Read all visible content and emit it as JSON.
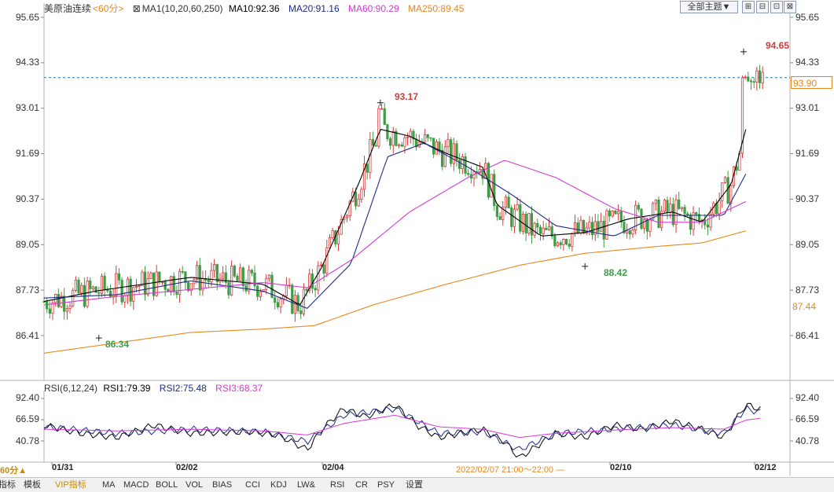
{
  "header": {
    "instrument": "美原油连续",
    "period": "<60分>",
    "ma_label": "MA1(10,20,60,250)",
    "ma10": "MA10:92.36",
    "ma20": "MA20:91.16",
    "ma60": "MA60:90.29",
    "ma250": "MA250:89.45",
    "theme_button": "全部主题▼",
    "colors": {
      "ma10": "#000000",
      "ma20": "#1d2a8a",
      "ma60": "#d23ad2",
      "ma250": "#e8871e",
      "up": "#d43b3b",
      "down": "#3f9c45"
    }
  },
  "price_axis": {
    "labels": [
      "95.65",
      "94.33",
      "93.01",
      "91.69",
      "90.37",
      "89.05",
      "87.73",
      "86.41"
    ],
    "current_price": "93.90",
    "ma250_price": "87.44"
  },
  "annotations": {
    "high1": "93.17",
    "high2": "94.65",
    "low1": "86.34",
    "low2": "88.42"
  },
  "rsi": {
    "title": "RSI(6,12,24)",
    "rsi1": "RSI1:79.39",
    "rsi2": "RSI2:75.48",
    "rsi3": "RSI3:68.37",
    "axis": [
      "92.40",
      "66.59",
      "40.78"
    ]
  },
  "x_axis": {
    "period_button": "60分▲",
    "labels": [
      "01/31",
      "02/02",
      "02/04",
      "02/10",
      "02/12"
    ],
    "crosshair_time": "2022/02/07 21:00～22:00 —"
  },
  "bottom_tabs": [
    "指标",
    "模板",
    "VIP指标",
    "MA",
    "MACD",
    "BOLL",
    "VOL",
    "BIAS",
    "CCI",
    "KDJ",
    "LW&",
    "RSI",
    "CR",
    "PSY",
    "设置"
  ],
  "chart_data": {
    "type": "line",
    "title": "美原油连续 60分",
    "xlabel": "",
    "ylabel": "",
    "ylim": [
      85.8,
      95.8
    ],
    "x": [
      "01/31",
      "02/02",
      "02/04",
      "02/10",
      "02/12"
    ],
    "series": [
      {
        "name": "MA10",
        "keypoints": [
          [
            0,
            87.4
          ],
          [
            0.07,
            87.7
          ],
          [
            0.2,
            88.1
          ],
          [
            0.3,
            87.9
          ],
          [
            0.35,
            87.3
          ],
          [
            0.38,
            88.4
          ],
          [
            0.43,
            90.8
          ],
          [
            0.46,
            92.4
          ],
          [
            0.5,
            92.2
          ],
          [
            0.55,
            91.7
          ],
          [
            0.6,
            91.3
          ],
          [
            0.62,
            90.2
          ],
          [
            0.68,
            89.3
          ],
          [
            0.74,
            89.4
          ],
          [
            0.8,
            89.8
          ],
          [
            0.86,
            90.0
          ],
          [
            0.9,
            89.7
          ],
          [
            0.94,
            90.8
          ],
          [
            0.96,
            92.4
          ]
        ]
      },
      {
        "name": "MA20",
        "keypoints": [
          [
            0,
            87.5
          ],
          [
            0.1,
            87.6
          ],
          [
            0.2,
            88.0
          ],
          [
            0.3,
            87.7
          ],
          [
            0.36,
            87.2
          ],
          [
            0.42,
            88.5
          ],
          [
            0.47,
            91.6
          ],
          [
            0.52,
            92.0
          ],
          [
            0.58,
            91.3
          ],
          [
            0.64,
            90.5
          ],
          [
            0.7,
            89.6
          ],
          [
            0.78,
            89.3
          ],
          [
            0.84,
            89.9
          ],
          [
            0.9,
            89.9
          ],
          [
            0.93,
            89.9
          ],
          [
            0.96,
            91.1
          ]
        ]
      },
      {
        "name": "MA60",
        "keypoints": [
          [
            0,
            87.3
          ],
          [
            0.1,
            87.55
          ],
          [
            0.2,
            87.75
          ],
          [
            0.3,
            87.95
          ],
          [
            0.36,
            87.8
          ],
          [
            0.42,
            88.6
          ],
          [
            0.5,
            90.0
          ],
          [
            0.58,
            91.0
          ],
          [
            0.63,
            91.5
          ],
          [
            0.7,
            91.0
          ],
          [
            0.78,
            90.1
          ],
          [
            0.84,
            89.7
          ],
          [
            0.9,
            89.7
          ],
          [
            0.96,
            90.3
          ]
        ]
      },
      {
        "name": "MA250",
        "keypoints": [
          [
            0,
            85.9
          ],
          [
            0.1,
            86.2
          ],
          [
            0.2,
            86.5
          ],
          [
            0.3,
            86.6
          ],
          [
            0.37,
            86.7
          ],
          [
            0.45,
            87.3
          ],
          [
            0.55,
            87.9
          ],
          [
            0.65,
            88.45
          ],
          [
            0.74,
            88.8
          ],
          [
            0.84,
            89.0
          ],
          [
            0.9,
            89.1
          ],
          [
            0.96,
            89.45
          ]
        ]
      },
      {
        "name": "RSI1",
        "keypoints": [
          [
            0,
            60
          ],
          [
            0.05,
            50
          ],
          [
            0.1,
            45
          ],
          [
            0.15,
            60
          ],
          [
            0.2,
            50
          ],
          [
            0.28,
            52
          ],
          [
            0.32,
            48
          ],
          [
            0.36,
            30
          ],
          [
            0.38,
            55
          ],
          [
            0.41,
            80
          ],
          [
            0.44,
            70
          ],
          [
            0.48,
            85
          ],
          [
            0.51,
            60
          ],
          [
            0.54,
            45
          ],
          [
            0.6,
            55
          ],
          [
            0.63,
            40
          ],
          [
            0.65,
            20
          ],
          [
            0.7,
            50
          ],
          [
            0.74,
            45
          ],
          [
            0.78,
            60
          ],
          [
            0.82,
            55
          ],
          [
            0.86,
            65
          ],
          [
            0.9,
            55
          ],
          [
            0.93,
            45
          ],
          [
            0.96,
            85
          ],
          [
            0.98,
            79.39
          ]
        ]
      },
      {
        "name": "RSI2",
        "keypoints": [
          [
            0,
            58
          ],
          [
            0.1,
            50
          ],
          [
            0.2,
            55
          ],
          [
            0.3,
            52
          ],
          [
            0.36,
            40
          ],
          [
            0.41,
            72
          ],
          [
            0.48,
            80
          ],
          [
            0.54,
            50
          ],
          [
            0.6,
            52
          ],
          [
            0.65,
            30
          ],
          [
            0.7,
            50
          ],
          [
            0.78,
            55
          ],
          [
            0.86,
            60
          ],
          [
            0.93,
            50
          ],
          [
            0.96,
            80
          ],
          [
            0.98,
            75.48
          ]
        ]
      },
      {
        "name": "RSI3",
        "keypoints": [
          [
            0,
            55
          ],
          [
            0.1,
            53
          ],
          [
            0.2,
            55
          ],
          [
            0.3,
            53
          ],
          [
            0.36,
            48
          ],
          [
            0.41,
            62
          ],
          [
            0.48,
            72
          ],
          [
            0.54,
            58
          ],
          [
            0.6,
            55
          ],
          [
            0.65,
            45
          ],
          [
            0.7,
            50
          ],
          [
            0.78,
            54
          ],
          [
            0.86,
            57
          ],
          [
            0.93,
            55
          ],
          [
            0.96,
            66
          ],
          [
            0.98,
            68.37
          ]
        ]
      }
    ],
    "annotations": [
      {
        "label": "93.17",
        "x": 0.46,
        "y": 93.17
      },
      {
        "label": "94.65",
        "x": 0.957,
        "y": 94.65
      },
      {
        "label": "86.34",
        "x": 0.075,
        "y": 86.34
      },
      {
        "label": "88.42",
        "x": 0.74,
        "y": 88.42
      }
    ],
    "grid": false,
    "legend": "top-left"
  }
}
